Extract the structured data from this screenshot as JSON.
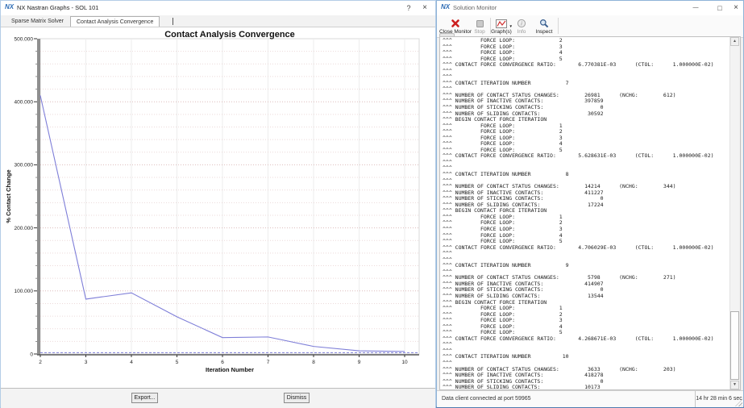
{
  "colors": {
    "nx_blue": "#2e6db5",
    "series_line": "#7e7ed8",
    "close_red": "#cc2020",
    "window_border": "#8fb3d8"
  },
  "left_window": {
    "logo": "NX",
    "title": "NX Nastran Graphs - SOL 101",
    "help_label": "?",
    "close_label": "×",
    "tabs": [
      {
        "label": "Sparse Matrix Solver"
      },
      {
        "label": "Contact Analysis Convergence"
      }
    ],
    "buttons": {
      "export": "Export...",
      "dismiss": "Dismiss"
    }
  },
  "chart_data": {
    "type": "line",
    "title": "Contact Analysis Convergence",
    "xlabel": "Iteration Number",
    "ylabel": "% Contact Change",
    "x": [
      2,
      3,
      4,
      5,
      6,
      7,
      8,
      9,
      10
    ],
    "values": [
      410,
      87,
      97,
      59,
      26,
      27,
      12,
      5,
      4
    ],
    "xlim": [
      2,
      10
    ],
    "ylim": [
      0,
      500
    ],
    "yticks": [
      0,
      100,
      200,
      300,
      400,
      500
    ],
    "ytick_labels": [
      "0",
      "100.000",
      "200.000",
      "300.000",
      "400.000",
      "500.000"
    ],
    "xtick_labels": [
      "2",
      "3",
      "4",
      "5",
      "6",
      "7",
      "8",
      "9",
      "10"
    ],
    "minor_step": 20,
    "threshold": 2,
    "grid": true,
    "legend": "none",
    "line_color": "#7e7ed8"
  },
  "right_window": {
    "logo": "NX",
    "title": "Solution Monitor",
    "window_buttons": {
      "minimize": "—",
      "maximize": "□",
      "close": "×"
    },
    "toolbar": {
      "buttons": [
        {
          "label": "Close Monitor",
          "icon": "close-monitor-icon",
          "enabled": true
        },
        {
          "label": "Stop",
          "icon": "stop-icon",
          "enabled": false
        },
        {
          "label": "Graph(s)",
          "icon": "graphs-icon",
          "enabled": true,
          "has_dropdown": true
        },
        {
          "label": "Info",
          "icon": "info-icon",
          "enabled": false
        },
        {
          "label": "Inspect",
          "icon": "inspect-icon",
          "enabled": true
        }
      ]
    },
    "log_lines": [
      "^^^         FORCE LOOP:              2",
      "^^^         FORCE LOOP:              3",
      "^^^         FORCE LOOP:              4",
      "^^^         FORCE LOOP:              5",
      "^^^ CONTACT FORCE CONVERGENCE RATIO:       6.770381E-03      (CTOL:      1.000000E-02)",
      "^^^",
      "^^^",
      "^^^ CONTACT ITERATION NUMBER           7",
      "^^^",
      "^^^ NUMBER OF CONTACT STATUS CHANGES:        26981      (NCHG:        612)",
      "^^^ NUMBER OF INACTIVE CONTACTS:             397859",
      "^^^ NUMBER OF STICKING CONTACTS:                  0",
      "^^^ NUMBER OF SLIDING CONTACTS:               30592",
      "^^^ BEGIN CONTACT FORCE ITERATION",
      "^^^         FORCE LOOP:              1",
      "^^^         FORCE LOOP:              2",
      "^^^         FORCE LOOP:              3",
      "^^^         FORCE LOOP:              4",
      "^^^         FORCE LOOP:              5",
      "^^^ CONTACT FORCE CONVERGENCE RATIO:       5.628631E-03      (CTOL:      1.000000E-02)",
      "^^^",
      "^^^",
      "^^^ CONTACT ITERATION NUMBER           8",
      "^^^",
      "^^^ NUMBER OF CONTACT STATUS CHANGES:        14214      (NCHG:        344)",
      "^^^ NUMBER OF INACTIVE CONTACTS:             411227",
      "^^^ NUMBER OF STICKING CONTACTS:                  0",
      "^^^ NUMBER OF SLIDING CONTACTS:               17224",
      "^^^ BEGIN CONTACT FORCE ITERATION",
      "^^^         FORCE LOOP:              1",
      "^^^         FORCE LOOP:              2",
      "^^^         FORCE LOOP:              3",
      "^^^         FORCE LOOP:              4",
      "^^^         FORCE LOOP:              5",
      "^^^ CONTACT FORCE CONVERGENCE RATIO:       4.706029E-03      (CTOL:      1.000000E-02)",
      "^^^",
      "^^^",
      "^^^ CONTACT ITERATION NUMBER           9",
      "^^^",
      "^^^ NUMBER OF CONTACT STATUS CHANGES:         5798      (NCHG:        271)",
      "^^^ NUMBER OF INACTIVE CONTACTS:             414907",
      "^^^ NUMBER OF STICKING CONTACTS:                  0",
      "^^^ NUMBER OF SLIDING CONTACTS:               13544",
      "^^^ BEGIN CONTACT FORCE ITERATION",
      "^^^         FORCE LOOP:              1",
      "^^^         FORCE LOOP:              2",
      "^^^         FORCE LOOP:              3",
      "^^^         FORCE LOOP:              4",
      "^^^         FORCE LOOP:              5",
      "^^^ CONTACT FORCE CONVERGENCE RATIO:       4.268671E-03      (CTOL:      1.000000E-02)",
      "^^^",
      "^^^",
      "^^^ CONTACT ITERATION NUMBER          10",
      "^^^",
      "^^^ NUMBER OF CONTACT STATUS CHANGES:         3633      (NCHG:        203)",
      "^^^ NUMBER OF INACTIVE CONTACTS:             418278",
      "^^^ NUMBER OF STICKING CONTACTS:                  0",
      "^^^ NUMBER OF SLIDING CONTACTS:              10173"
    ],
    "status": {
      "left": "Data client connected at port 59965",
      "right": "14 hr 28 min 6 sec"
    }
  }
}
